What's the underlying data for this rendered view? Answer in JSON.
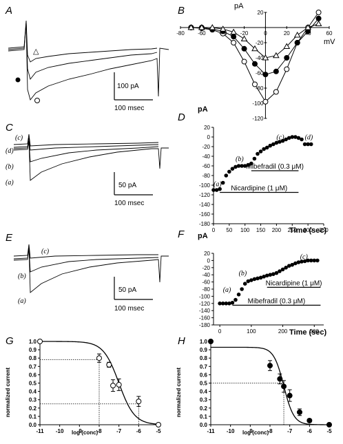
{
  "panels": {
    "A": {
      "letter": "A",
      "scale_y": "100 pA",
      "scale_x": "100 msec"
    },
    "B": {
      "letter": "B",
      "ylabel": "pA",
      "xlabel": "mV"
    },
    "C": {
      "letter": "C",
      "scale_y": "50 pA",
      "scale_x": "100 msec",
      "trace_labels": [
        "(c)",
        "(d)",
        "(b)",
        "(a)"
      ]
    },
    "D": {
      "letter": "D",
      "ylabel": "pA",
      "xlabel": "Time (sec)",
      "bar1": "Mibefradil (0.3 μM)",
      "bar2": "Nicardipine (1 μM)",
      "point_labels": [
        "(a)",
        "(b)",
        "(c)",
        "(d)"
      ]
    },
    "E": {
      "letter": "E",
      "scale_y": "50 pA",
      "scale_x": "100 msec",
      "trace_labels": [
        "(c)",
        "(b)",
        "(a)"
      ]
    },
    "F": {
      "letter": "F",
      "ylabel": "pA",
      "xlabel": "Time (sec)",
      "bar1": "Nicardipine (1 μM)",
      "bar2": "Mibefradil (0.3 μM)",
      "point_labels": [
        "(a)",
        "(b)",
        "(c)"
      ]
    },
    "G": {
      "letter": "G",
      "ylabel": "normalized current",
      "xlabel": "log (conc)"
    },
    "H": {
      "letter": "H",
      "ylabel": "normalized current",
      "xlabel": "log (conc)"
    }
  },
  "chart_data": [
    {
      "id": "B",
      "type": "line",
      "xlabel": "mV",
      "ylabel": "pA",
      "xlim": [
        -80,
        60
      ],
      "ylim": [
        -120,
        20
      ],
      "xticks": [
        -80,
        -60,
        -40,
        -20,
        0,
        20,
        40,
        60
      ],
      "yticks": [
        20,
        0,
        -20,
        -40,
        -60,
        -80,
        -100,
        -120
      ],
      "series": [
        {
          "marker": "open-circle",
          "x": [
            -70,
            -60,
            -50,
            -40,
            -30,
            -20,
            -10,
            0,
            10,
            20,
            30,
            40,
            50
          ],
          "y": [
            0,
            -1,
            -3,
            -8,
            -20,
            -45,
            -75,
            -98,
            -85,
            -55,
            -20,
            0,
            20
          ]
        },
        {
          "marker": "filled-circle",
          "x": [
            -70,
            -60,
            -50,
            -40,
            -30,
            -20,
            -10,
            0,
            10,
            20,
            30,
            40,
            50
          ],
          "y": [
            0,
            0,
            -2,
            -5,
            -12,
            -28,
            -48,
            -62,
            -58,
            -40,
            -20,
            -5,
            12
          ]
        },
        {
          "marker": "open-triangle",
          "x": [
            -70,
            -60,
            -50,
            -40,
            -30,
            -20,
            -10,
            0,
            10,
            20,
            30,
            40,
            50
          ],
          "y": [
            0,
            0,
            0,
            -2,
            -6,
            -15,
            -28,
            -40,
            -37,
            -25,
            -10,
            0,
            5
          ]
        }
      ]
    },
    {
      "id": "D",
      "type": "scatter",
      "xlabel": "Time (sec)",
      "ylabel": "pA",
      "xlim": [
        0,
        350
      ],
      "ylim": [
        -180,
        20
      ],
      "xticks": [
        0,
        50,
        100,
        150,
        200,
        250,
        300,
        350
      ],
      "yticks": [
        20,
        0,
        -20,
        -40,
        -60,
        -80,
        -100,
        -120,
        -140,
        -160,
        -180
      ],
      "x": [
        0,
        10,
        20,
        30,
        40,
        50,
        60,
        70,
        80,
        90,
        100,
        110,
        120,
        130,
        140,
        150,
        160,
        170,
        180,
        190,
        200,
        210,
        220,
        230,
        240,
        250,
        260,
        270,
        280,
        290,
        300,
        310
      ],
      "y": [
        -110,
        -110,
        -108,
        -95,
        -80,
        -72,
        -66,
        -62,
        -60,
        -60,
        -60,
        -58,
        -55,
        -45,
        -35,
        -30,
        -25,
        -22,
        -18,
        -15,
        -12,
        -10,
        -8,
        -5,
        -2,
        0,
        0,
        -2,
        -5,
        -15,
        -15,
        -15
      ],
      "bars": [
        {
          "label": "Mibefradil (0.3 μM)",
          "x0": 120,
          "x1": 270,
          "y": -70
        },
        {
          "label": "Nicardipine (1 μM)",
          "x0": 20,
          "x1": 270,
          "y": -115
        }
      ]
    },
    {
      "id": "F",
      "type": "scatter",
      "xlabel": "Time (sec)",
      "ylabel": "pA",
      "xlim": [
        -20,
        330
      ],
      "ylim": [
        -180,
        20
      ],
      "xticks": [
        0,
        100,
        200,
        300
      ],
      "yticks": [
        20,
        0,
        -20,
        -40,
        -60,
        -80,
        -100,
        -120,
        -140,
        -160,
        -180
      ],
      "x": [
        0,
        10,
        20,
        30,
        40,
        50,
        60,
        70,
        80,
        90,
        100,
        110,
        120,
        130,
        140,
        150,
        160,
        170,
        180,
        190,
        200,
        210,
        220,
        230,
        240,
        250,
        260,
        270,
        280,
        290,
        300,
        310
      ],
      "y": [
        -120,
        -120,
        -120,
        -120,
        -118,
        -110,
        -95,
        -80,
        -65,
        -58,
        -55,
        -52,
        -50,
        -48,
        -45,
        -42,
        -40,
        -38,
        -35,
        -30,
        -25,
        -20,
        -15,
        -12,
        -8,
        -5,
        -3,
        -2,
        0,
        0,
        0,
        0
      ],
      "bars": [
        {
          "label": "Nicardipine (1 μM)",
          "x0": 150,
          "x1": 320,
          "y": -75
        },
        {
          "label": "Mibefradil (0.3 μM)",
          "x0": 40,
          "x1": 320,
          "y": -125
        }
      ]
    },
    {
      "id": "G",
      "type": "scatter",
      "xlabel": "log (conc)",
      "ylabel": "normalized current",
      "xlim": [
        -11,
        -5
      ],
      "ylim": [
        0,
        1.0
      ],
      "xticks": [
        -11,
        -10,
        -9,
        -8,
        -7,
        -6,
        -5
      ],
      "yticks": [
        0.0,
        0.1,
        0.2,
        0.3,
        0.4,
        0.5,
        0.6,
        0.7,
        0.8,
        0.9,
        1.0
      ],
      "marker": "open-circle",
      "x": [
        -11,
        -8,
        -7.5,
        -7.3,
        -7,
        -6,
        -5
      ],
      "y": [
        1.0,
        0.8,
        0.72,
        0.47,
        0.48,
        0.28,
        0.0
      ],
      "err": [
        0,
        0.05,
        0.03,
        0.07,
        0.07,
        0.06,
        0
      ],
      "fit": {
        "top": 1.0,
        "bottom": 0.0,
        "logIC50": -7.0,
        "hill": 0.55
      },
      "guides": [
        {
          "x": -8,
          "y": 0.78
        },
        {
          "x": -6,
          "y": 0.25
        }
      ]
    },
    {
      "id": "H",
      "type": "scatter",
      "xlabel": "log (conc)",
      "ylabel": "normalized current",
      "xlim": [
        -11,
        -5
      ],
      "ylim": [
        0,
        1.0
      ],
      "xticks": [
        -11,
        -10,
        -9,
        -8,
        -7,
        -6,
        -5
      ],
      "yticks": [
        0.0,
        0.1,
        0.2,
        0.3,
        0.4,
        0.5,
        0.6,
        0.7,
        0.8,
        0.9,
        1.0
      ],
      "marker": "filled-circle",
      "x": [
        -11,
        -8,
        -7.5,
        -7.3,
        -7,
        -6.5,
        -6,
        -5
      ],
      "y": [
        1.0,
        0.71,
        0.55,
        0.46,
        0.35,
        0.15,
        0.05,
        0.0
      ],
      "err": [
        0,
        0.06,
        0.06,
        0.07,
        0.07,
        0.04,
        0.02,
        0
      ],
      "fit": {
        "top": 0.93,
        "bottom": 0.0,
        "logIC50": -7.3,
        "hill": 0.85
      },
      "guides": [
        {
          "x": -7.3,
          "y": 0.5
        }
      ]
    }
  ]
}
